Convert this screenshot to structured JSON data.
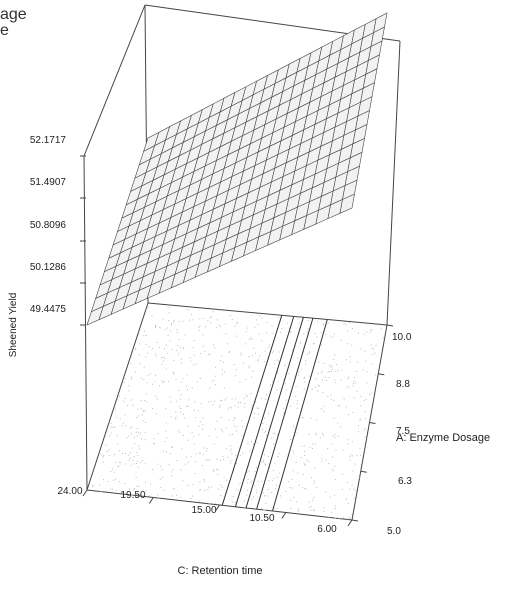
{
  "top_left_partial_text": [
    "age",
    "e"
  ],
  "chart_data": {
    "type": "surface",
    "z_axis": {
      "label": "Sheened Yield",
      "ticks": [
        "52.1717",
        "51.4907",
        "50.8096",
        "50.1286",
        "49.4475"
      ],
      "range": [
        49.4475,
        52.1717
      ]
    },
    "x_axis": {
      "label": "C: Retention time",
      "ticks": [
        "24.00",
        "19.50",
        "15.00",
        "10.50",
        "6.00"
      ],
      "range": [
        6.0,
        24.0
      ]
    },
    "y_axis": {
      "label": "A: Enzyme Dosage",
      "ticks": [
        "10.0",
        "8.8",
        "7.5",
        "6.3",
        "5.0"
      ],
      "range": [
        5.0,
        10.0
      ]
    },
    "surface": {
      "description_values": {
        "corner_time24_dose10": 49.45,
        "corner_time24_dose5": 49.45,
        "corner_time6_dose10": 52.17,
        "corner_time6_dose5": 52.17
      }
    },
    "contour_lines_on_floor": 5,
    "grid": false
  }
}
